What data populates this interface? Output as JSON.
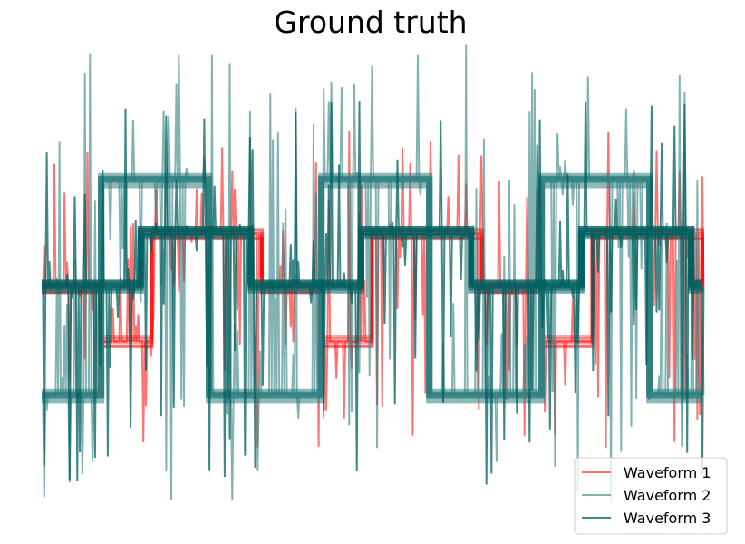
{
  "chart_data": {
    "type": "line",
    "title": "Ground truth",
    "xlabel": "",
    "ylabel": "",
    "axes_visible": false,
    "grid": false,
    "legend_position": "lower right",
    "x_range": [
      0,
      30
    ],
    "ylim": [
      -2.6,
      3.0
    ],
    "series": [
      {
        "name": "Waveform 1",
        "color": "#ff0000",
        "opacity": 0.55,
        "clean_shape": "square wave between -0.6 and 0.6 with short dips at falling edges",
        "breakpoints_x": [
          0,
          2.7,
          5.0,
          7.5,
          10.0,
          12.7,
          15.0,
          17.5,
          20.0,
          22.7,
          25.0,
          27.5,
          30.0
        ],
        "levels": [
          0,
          -0.6,
          0.6,
          0.6,
          0,
          -0.6,
          0.6,
          0.6,
          0,
          -0.6,
          0.6,
          0.6,
          0
        ],
        "noise_spike_range": [
          -1.8,
          1.8
        ]
      },
      {
        "name": "Waveform 2",
        "color": "#2f7f7f",
        "opacity": 0.6,
        "clean_shape": "staircase wave spanning -1.2 to 1.2",
        "breakpoints_x": [
          0,
          2.7,
          7.6,
          12.7,
          17.6,
          22.7,
          27.6,
          30.0
        ],
        "levels": [
          -1.2,
          1.2,
          -1.2,
          1.2,
          -1.2,
          1.2,
          -1.2,
          -1.2
        ],
        "noise_spike_range": [
          -2.4,
          2.8
        ]
      },
      {
        "name": "Waveform 3",
        "color": "#005f5f",
        "opacity": 0.75,
        "clean_shape": "square wave between 0 and 0.6 offset from waveform 2",
        "breakpoints_x": [
          0,
          4.5,
          9.5,
          14.5,
          19.5,
          24.5,
          29.5,
          30.0
        ],
        "levels": [
          0,
          0.6,
          0,
          0.6,
          0,
          0.6,
          0,
          0
        ],
        "noise_spike_range": [
          -2.2,
          2.2
        ]
      }
    ]
  }
}
